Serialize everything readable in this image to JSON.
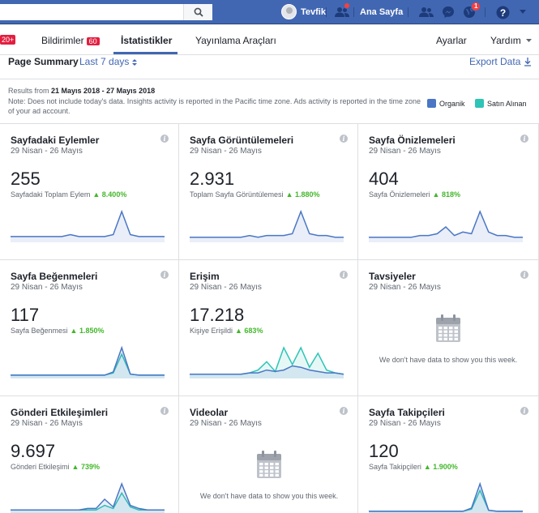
{
  "topbar": {
    "search_placeholder": "",
    "user_name": "Tevfik",
    "home": "Ana Sayfa",
    "notif_badge": "1"
  },
  "subnav": {
    "left_badge": "20+",
    "items": [
      "Bildirimler",
      "İstatistikler",
      "Yayınlama Araçları",
      "Ayarlar",
      "Yardım"
    ],
    "notif_count": "60"
  },
  "summary": {
    "title": "Page Summary",
    "range": "Last 7 days",
    "export": "Export Data",
    "results_prefix": "Results from",
    "results_range": "21 Mayıs 2018 - 27 Mayıs 2018",
    "note": "Note: Does not include today's data. Insights activity is reported in the Pacific time zone. Ads activity is reported in the time zone of your ad account.",
    "legend": [
      {
        "label": "Organik",
        "color": "#4a76c5"
      },
      {
        "label": "Satın Alınan",
        "color": "#2ec4b6"
      }
    ]
  },
  "cards": [
    {
      "title": "Sayfadaki Eylemler",
      "date": "29 Nisan - 26 Mayıs",
      "value": "255",
      "sub": "Sayfadaki Toplam Eylem",
      "change": "8.400%",
      "organic": [
        3,
        3,
        3,
        3,
        3,
        3,
        3,
        4,
        3,
        3,
        3,
        3,
        4,
        16,
        4,
        3,
        3,
        3,
        3
      ],
      "paid": []
    },
    {
      "title": "Sayfa Görüntülemeleri",
      "date": "29 Nisan - 26 Mayıs",
      "value": "2.931",
      "sub": "Toplam Sayfa Görüntülemesi",
      "change": "1.880%",
      "organic": [
        3,
        3,
        3,
        3,
        3,
        3,
        3,
        4,
        3,
        4,
        4,
        4,
        5,
        18,
        5,
        4,
        4,
        3,
        3
      ],
      "paid": []
    },
    {
      "title": "Sayfa Önizlemeleri",
      "date": "29 Nisan - 26 Mayıs",
      "value": "404",
      "sub": "Sayfa Önizlemeleri",
      "change": "818%",
      "organic": [
        3,
        3,
        3,
        3,
        3,
        3,
        4,
        4,
        5,
        9,
        4,
        6,
        5,
        18,
        6,
        4,
        4,
        3,
        3
      ],
      "paid": []
    },
    {
      "title": "Sayfa Beğenmeleri",
      "date": "29 Nisan - 26 Mayıs",
      "value": "117",
      "sub": "Sayfa Beğenmesi",
      "change": "1.850%",
      "organic": [
        3,
        3,
        3,
        3,
        3,
        3,
        3,
        3,
        3,
        3,
        3,
        3,
        6,
        28,
        4,
        3,
        3,
        3,
        3
      ],
      "paid": [
        3,
        3,
        3,
        3,
        3,
        3,
        3,
        3,
        3,
        3,
        3,
        3,
        5,
        22,
        4,
        3,
        3,
        3,
        3
      ]
    },
    {
      "title": "Erişim",
      "date": "29 Nisan - 26 Mayıs",
      "value": "17.218",
      "sub": "Kişiye Erişildi",
      "change": "683%",
      "organic": [
        3,
        3,
        3,
        3,
        3,
        3,
        3,
        4,
        4,
        6,
        5,
        6,
        9,
        8,
        6,
        5,
        4,
        4,
        3
      ],
      "paid": [
        3,
        3,
        3,
        3,
        3,
        3,
        3,
        4,
        6,
        12,
        5,
        22,
        10,
        22,
        8,
        18,
        6,
        4,
        3
      ]
    },
    {
      "title": "Tavsiyeler",
      "date": "29 Nisan - 26 Mayıs",
      "nodata": "We don't have data to show you this week."
    },
    {
      "title": "Gönderi Etkileşimleri",
      "date": "29 Nisan - 26 Mayıs",
      "value": "9.697",
      "sub": "Gönderi Etkileşimi",
      "change": "739%",
      "organic": [
        3,
        3,
        3,
        3,
        3,
        3,
        3,
        3,
        3,
        4,
        4,
        10,
        5,
        20,
        6,
        4,
        3,
        3,
        3
      ],
      "paid": [
        3,
        3,
        3,
        3,
        3,
        3,
        3,
        3,
        3,
        3,
        3,
        6,
        4,
        14,
        5,
        3,
        3,
        3,
        3
      ]
    },
    {
      "title": "Videolar",
      "date": "29 Nisan - 26 Mayıs",
      "nodata": "We don't have data to show you this week."
    },
    {
      "title": "Sayfa Takipçileri",
      "date": "29 Nisan - 26 Mayıs",
      "value": "120",
      "sub": "Sayfa Takipçileri",
      "change": "1.900%",
      "organic": [
        3,
        3,
        3,
        3,
        3,
        3,
        3,
        3,
        3,
        3,
        3,
        3,
        6,
        28,
        4,
        3,
        3,
        3,
        3
      ],
      "paid": [
        3,
        3,
        3,
        3,
        3,
        3,
        3,
        3,
        3,
        3,
        3,
        3,
        5,
        22,
        4,
        3,
        3,
        3,
        3
      ]
    }
  ]
}
